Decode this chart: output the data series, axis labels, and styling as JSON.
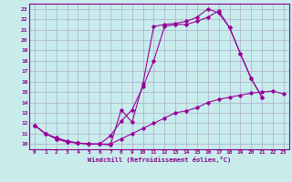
{
  "xlabel": "Windchill (Refroidissement éolien,°C)",
  "background_color": "#c8ecec",
  "grid_color": "#aaaacc",
  "line_color": "#990099",
  "xlim": [
    -0.5,
    23.5
  ],
  "ylim": [
    9.5,
    23.5
  ],
  "yticks": [
    10,
    11,
    12,
    13,
    14,
    15,
    16,
    17,
    18,
    19,
    20,
    21,
    22,
    23
  ],
  "xticks": [
    0,
    1,
    2,
    3,
    4,
    5,
    6,
    7,
    8,
    9,
    10,
    11,
    12,
    13,
    14,
    15,
    16,
    17,
    18,
    19,
    20,
    21,
    22,
    23
  ],
  "line1_x": [
    0,
    1,
    2,
    3,
    4,
    5,
    6,
    7,
    8,
    9,
    10,
    11,
    12,
    13,
    14,
    15,
    16,
    17,
    18,
    19,
    20,
    21
  ],
  "line1_y": [
    11.8,
    11.0,
    10.6,
    10.3,
    10.1,
    10.0,
    10.0,
    9.9,
    13.3,
    12.1,
    15.8,
    21.3,
    21.5,
    21.6,
    21.8,
    22.2,
    23.0,
    22.6,
    21.2,
    18.7,
    16.3,
    14.5
  ],
  "line2_x": [
    0,
    1,
    2,
    3,
    4,
    5,
    6,
    7,
    8,
    9,
    10,
    11,
    12,
    13,
    14,
    15,
    16,
    17,
    18,
    19,
    20,
    21
  ],
  "line2_y": [
    11.8,
    11.0,
    10.5,
    10.2,
    10.1,
    10.0,
    10.0,
    10.8,
    12.2,
    13.3,
    15.5,
    18.0,
    21.3,
    21.5,
    21.5,
    21.8,
    22.2,
    22.8,
    21.2,
    18.7,
    16.3,
    14.5
  ],
  "line3_x": [
    0,
    1,
    2,
    3,
    4,
    5,
    6,
    7,
    8,
    9,
    10,
    11,
    12,
    13,
    14,
    15,
    16,
    17,
    18,
    19,
    20,
    21,
    22,
    23
  ],
  "line3_y": [
    11.8,
    11.0,
    10.5,
    10.2,
    10.1,
    10.0,
    10.0,
    10.0,
    10.5,
    11.0,
    11.5,
    12.0,
    12.5,
    13.0,
    13.2,
    13.5,
    14.0,
    14.3,
    14.5,
    14.7,
    14.9,
    15.0,
    15.1,
    14.8
  ]
}
